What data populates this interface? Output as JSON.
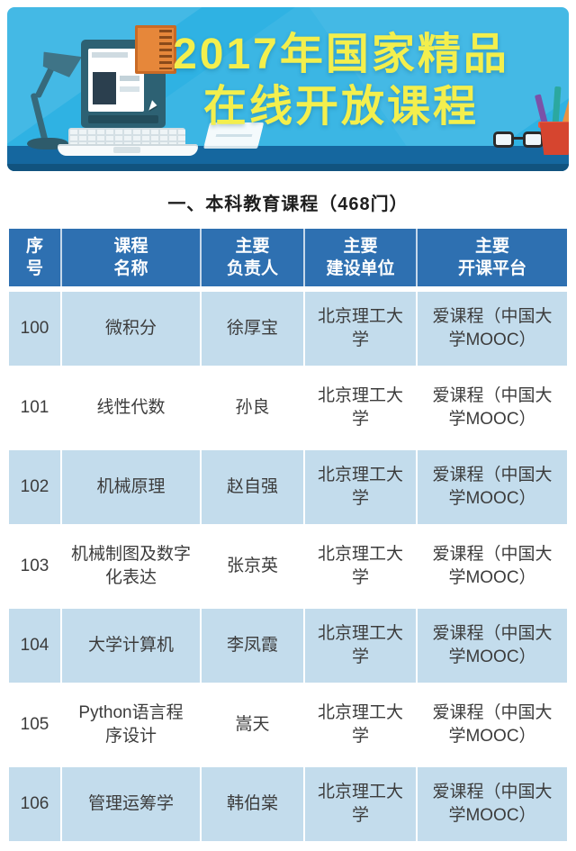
{
  "banner": {
    "title_line1": "2017年国家精品",
    "title_line2": "在线开放课程",
    "colors": {
      "background": "#2fb2e3",
      "desk": "#15679f",
      "title_text": "#f3ef4d"
    },
    "icons": [
      "desk-lamp-icon",
      "laptop-icon",
      "book-icon",
      "glasses-icon",
      "pencil-cup-icon"
    ]
  },
  "section": {
    "title": "一、本科教育课程（468门）"
  },
  "table": {
    "colors": {
      "header_bg": "#2e70b1",
      "header_text": "#ffffff",
      "alt_row_bg": "#c3dcec",
      "row_text": "#3c3c3c"
    },
    "headers": [
      {
        "line1": "序",
        "line2": "号"
      },
      {
        "line1": "课程",
        "line2": "名称"
      },
      {
        "line1": "主要",
        "line2": "负责人"
      },
      {
        "line1": "主要",
        "line2": "建设单位"
      },
      {
        "line1": "主要",
        "line2": "开课平台"
      }
    ],
    "rows": [
      {
        "no": "100",
        "course": "微积分",
        "leader": "徐厚宝",
        "institution": "北京理工大\n学",
        "platform": "爱课程（中国大\n学MOOC）"
      },
      {
        "no": "101",
        "course": "线性代数",
        "leader": "孙良",
        "institution": "北京理工大\n学",
        "platform": "爱课程（中国大\n学MOOC）"
      },
      {
        "no": "102",
        "course": "机械原理",
        "leader": "赵自强",
        "institution": "北京理工大\n学",
        "platform": "爱课程（中国大\n学MOOC）"
      },
      {
        "no": "103",
        "course": "机械制图及数字\n化表达",
        "leader": "张京英",
        "institution": "北京理工大\n学",
        "platform": "爱课程（中国大\n学MOOC）"
      },
      {
        "no": "104",
        "course": "大学计算机",
        "leader": "李凤霞",
        "institution": "北京理工大\n学",
        "platform": "爱课程（中国大\n学MOOC）"
      },
      {
        "no": "105",
        "course": "Python语言程\n序设计",
        "leader": "嵩天",
        "institution": "北京理工大\n学",
        "platform": "爱课程（中国大\n学MOOC）"
      },
      {
        "no": "106",
        "course": "管理运筹学",
        "leader": "韩伯棠",
        "institution": "北京理工大\n学",
        "platform": "爱课程（中国大\n学MOOC）"
      }
    ]
  }
}
